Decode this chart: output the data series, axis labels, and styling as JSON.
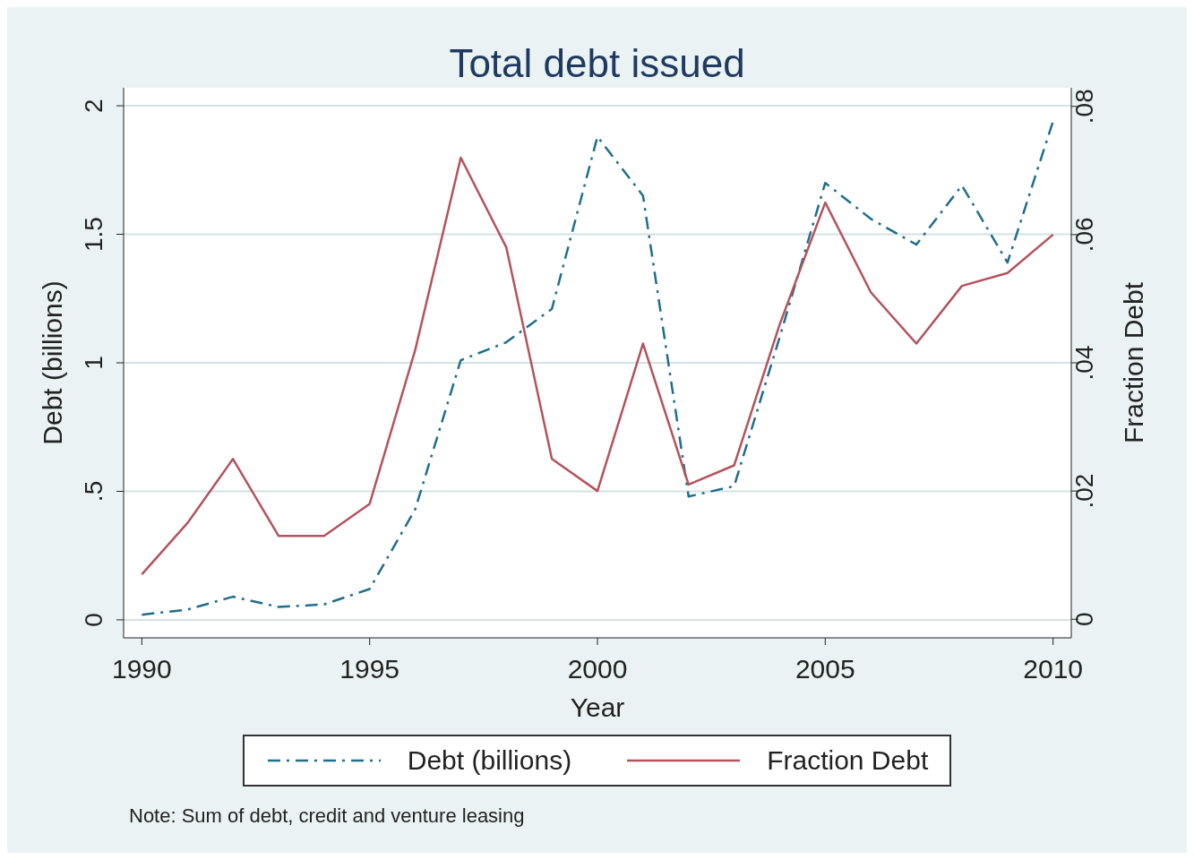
{
  "chart_data": {
    "type": "line",
    "title": "Total debt issued",
    "xlabel": "Year",
    "ylabel": "Debt (billions)",
    "y2label": "Fraction  Debt",
    "x": [
      1990,
      1991,
      1992,
      1993,
      1994,
      1995,
      1996,
      1997,
      1998,
      1999,
      2000,
      2001,
      2002,
      2003,
      2004,
      2005,
      2006,
      2007,
      2008,
      2009,
      2010
    ],
    "series": [
      {
        "name": "Debt (billions)",
        "color": "#1f6e8c",
        "line_style": "dashed",
        "values": [
          0.02,
          0.04,
          0.09,
          0.05,
          0.06,
          0.12,
          0.43,
          1.01,
          1.08,
          1.21,
          1.88,
          1.65,
          0.48,
          0.52,
          1.1,
          1.7,
          1.56,
          1.46,
          1.69,
          1.39,
          1.94
        ]
      },
      {
        "name": "Fraction  Debt",
        "color": "#b5525c",
        "line_style": "solid",
        "axis": "y2",
        "values": [
          0.007,
          0.015,
          0.025,
          0.013,
          0.013,
          0.018,
          0.042,
          0.072,
          0.058,
          0.025,
          0.02,
          0.043,
          0.021,
          0.024,
          0.046,
          0.065,
          0.051,
          0.043,
          0.052,
          0.054,
          0.06
        ]
      }
    ],
    "xlim": [
      1989.6,
      2010.4
    ],
    "xticks": [
      1990,
      1995,
      2000,
      2005,
      2010
    ],
    "ylim": [
      -0.07,
      2.07
    ],
    "yticks": [
      0,
      {
        "value": 0.5,
        "label": ".5"
      },
      1,
      1.5,
      2
    ],
    "y2lim": [
      -0.0029,
      0.0829
    ],
    "y2ticks": [
      0,
      {
        "value": 0.02,
        "label": ".02"
      },
      {
        "value": 0.04,
        "label": ".04"
      },
      {
        "value": 0.06,
        "label": ".06"
      },
      {
        "value": 0.08,
        "label": ".08"
      }
    ],
    "grid": "y",
    "legend": "bottom",
    "marker": "none",
    "annotations": [
      "Note: Sum of debt, credit and venture leasing"
    ]
  }
}
